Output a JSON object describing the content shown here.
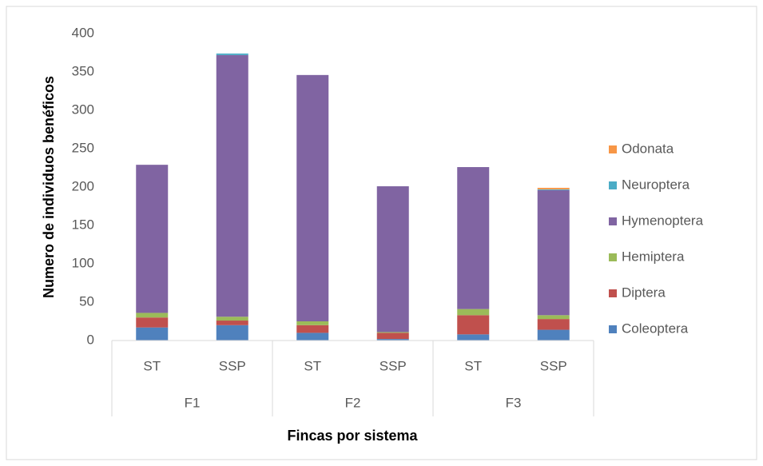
{
  "chart_data": {
    "type": "stacked_bar",
    "x_label": "Fincas por sistema",
    "y_label": "Numero de individuos benéficos",
    "categories": [
      "ST",
      "SSP",
      "ST",
      "SSP",
      "ST",
      "SSP"
    ],
    "groups": [
      "F1",
      "F2",
      "F3"
    ],
    "series": [
      {
        "name": "Coleoptera",
        "color": "#4f81bd",
        "values": [
          17,
          20,
          10,
          2,
          8,
          14
        ]
      },
      {
        "name": "Diptera",
        "color": "#c0504d",
        "values": [
          13,
          6,
          10,
          8,
          25,
          14
        ]
      },
      {
        "name": "Hemiptera",
        "color": "#9bbb59",
        "values": [
          6,
          5,
          5,
          1,
          8,
          5
        ]
      },
      {
        "name": "Hymenoptera",
        "color": "#8064a2",
        "values": [
          193,
          341,
          321,
          190,
          185,
          163
        ]
      },
      {
        "name": "Neuroptera",
        "color": "#4bacc6",
        "values": [
          0,
          2,
          0,
          0,
          0,
          1
        ]
      },
      {
        "name": "Odonata",
        "color": "#f79646",
        "values": [
          0,
          0,
          0,
          0,
          0,
          2
        ]
      }
    ],
    "ylim": [
      0,
      400
    ],
    "yticks": [
      0,
      50,
      100,
      150,
      200,
      250,
      300,
      350,
      400
    ],
    "grid": false,
    "legend": "right"
  }
}
